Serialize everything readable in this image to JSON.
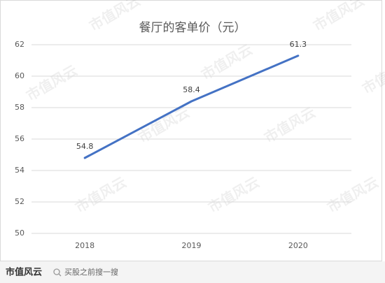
{
  "chart_data": {
    "type": "line",
    "title": "餐厅的客单价（元）",
    "categories": [
      "2018",
      "2019",
      "2020"
    ],
    "series": [
      {
        "name": "客单价",
        "color": "#4472c4",
        "values": [
          54.8,
          58.4,
          61.3
        ]
      }
    ],
    "ylim": [
      50,
      62
    ],
    "yticks": [
      50,
      52,
      54,
      56,
      58,
      60,
      62
    ],
    "grid": true,
    "show_legend": false,
    "show_value_labels": true
  },
  "watermark": "市值风云",
  "footer": {
    "logo": "市值风云",
    "slogan": "买股之前搜一搜"
  }
}
